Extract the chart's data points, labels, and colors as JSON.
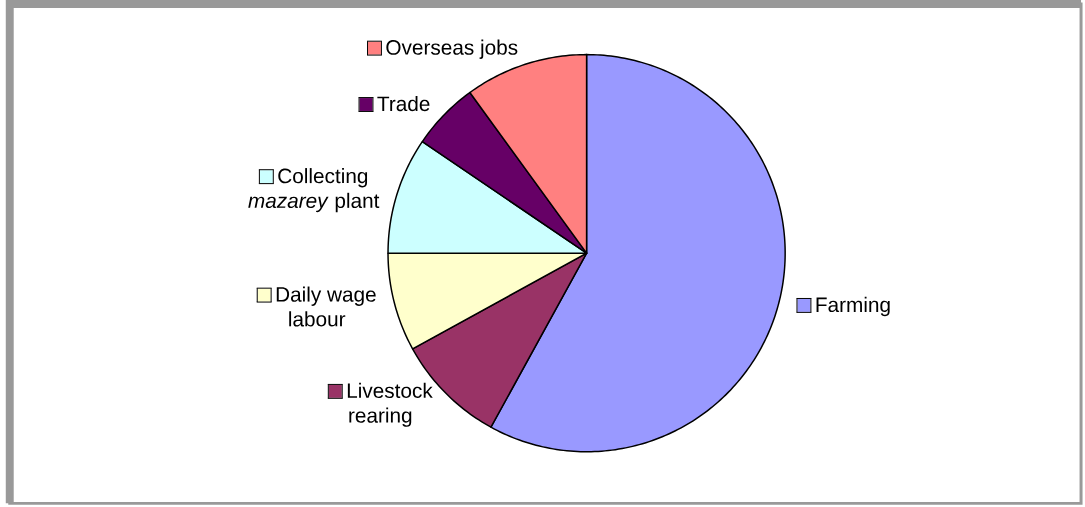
{
  "chart_data": {
    "type": "pie",
    "categories": [
      "Farming",
      "Livestock rearing",
      "Daily wage labour",
      "Collecting *mazarey* plant",
      "Trade",
      "Overseas jobs"
    ],
    "values": [
      58,
      9,
      8,
      9.5,
      5.5,
      10
    ],
    "colors": [
      "#9999ff",
      "#993366",
      "#ffffcc",
      "#ccffff",
      "#660066",
      "#ff8080"
    ],
    "legend": "left"
  }
}
